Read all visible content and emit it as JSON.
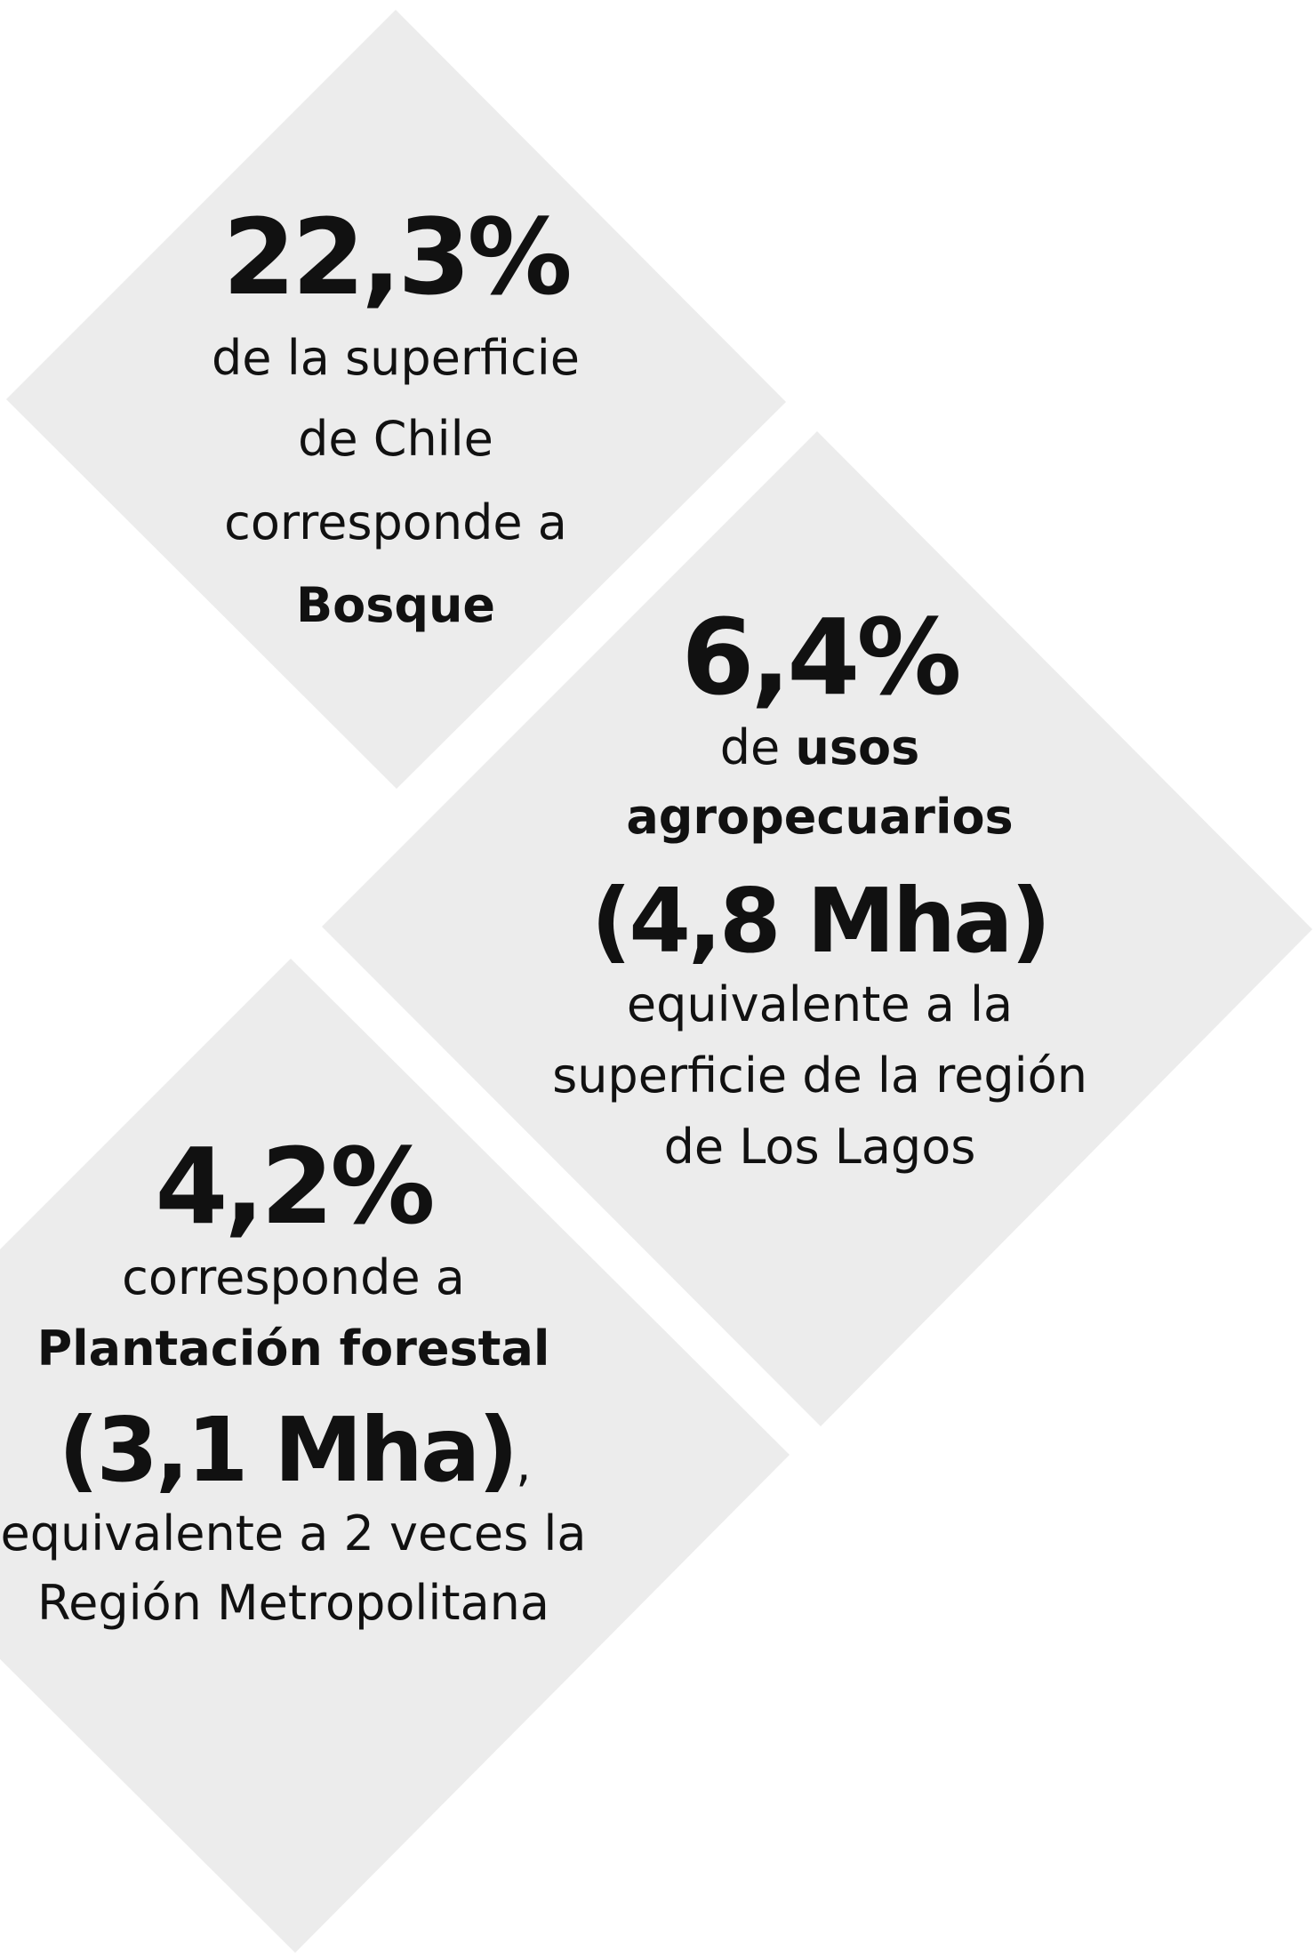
{
  "panels": [
    {
      "figure": "22,3%",
      "lines": [
        {
          "parts": [
            {
              "text": "de la superficie",
              "bold": false
            }
          ]
        },
        {
          "parts": [
            {
              "text": "de Chile",
              "bold": false
            }
          ]
        },
        {
          "parts": [
            {
              "text": "corresponde a",
              "bold": false
            }
          ]
        },
        {
          "parts": [
            {
              "text": "Bosque",
              "bold": true
            }
          ]
        }
      ]
    },
    {
      "figure": "6,4%",
      "lines": [
        {
          "parts": [
            {
              "text": "de ",
              "bold": false
            },
            {
              "text": "usos",
              "bold": true
            }
          ]
        },
        {
          "parts": [
            {
              "text": "agropecuarios",
              "bold": true
            }
          ]
        },
        {
          "parts": [
            {
              "text": "(4,8 Mha)",
              "bold": true
            }
          ],
          "large": true
        },
        {
          "parts": [
            {
              "text": "equivalente a la",
              "bold": false
            }
          ]
        },
        {
          "parts": [
            {
              "text": "superficie de la región",
              "bold": false
            }
          ]
        },
        {
          "parts": [
            {
              "text": "de Los Lagos",
              "bold": false
            }
          ]
        }
      ]
    },
    {
      "figure": "4,2%",
      "lines": [
        {
          "parts": [
            {
              "text": "corresponde a",
              "bold": false
            }
          ]
        },
        {
          "parts": [
            {
              "text": "Plantación forestal",
              "bold": true
            }
          ]
        },
        {
          "parts": [
            {
              "text": "(3,1 Mha)",
              "bold": true
            },
            {
              "text": ",",
              "bold": false
            }
          ],
          "large": true
        },
        {
          "parts": [
            {
              "text": "equivalente a 2 veces la",
              "bold": false
            }
          ]
        },
        {
          "parts": [
            {
              "text": "Región Metropolitana",
              "bold": false
            }
          ]
        }
      ]
    }
  ]
}
